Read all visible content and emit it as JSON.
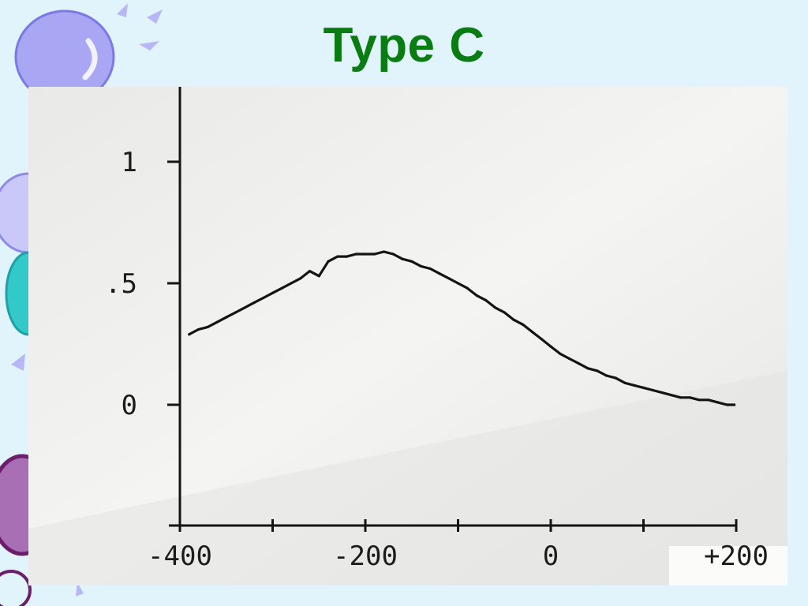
{
  "slide": {
    "title": "Type C"
  },
  "colors": {
    "background": "#e1f4fb",
    "title": "#0a7d12",
    "photo_paper": "#efefee",
    "ink": "#141414",
    "bubble_lavender": "#a9a7f4",
    "bubble_teal": "#33c9c9",
    "bubble_purple": "#a86fb4",
    "bubble_dark_purple": "#6b1f6b"
  },
  "decoration_icons": [
    "bubble-icon",
    "sparkle-icon"
  ],
  "chart_data": {
    "type": "line",
    "title": "",
    "xlabel": "",
    "ylabel": "",
    "xlim": [
      -400,
      200
    ],
    "ylim": [
      0,
      1
    ],
    "x_ticks": [
      {
        "value": -400,
        "label": "-400"
      },
      {
        "value": -300,
        "label": ""
      },
      {
        "value": -200,
        "label": "-200"
      },
      {
        "value": -100,
        "label": ""
      },
      {
        "value": 0,
        "label": "0"
      },
      {
        "value": 100,
        "label": ""
      },
      {
        "value": 200,
        "label": "+200"
      }
    ],
    "y_ticks": [
      {
        "value": 0,
        "label": "0"
      },
      {
        "value": 0.5,
        "label": ".5"
      },
      {
        "value": 1,
        "label": "1"
      }
    ],
    "grid": false,
    "legend": "none",
    "series": [
      {
        "x": [
          -390,
          -380,
          -370,
          -360,
          -350,
          -340,
          -330,
          -320,
          -310,
          -300,
          -290,
          -280,
          -270,
          -260,
          -250,
          -240,
          -230,
          -220,
          -210,
          -200,
          -190,
          -180,
          -170,
          -160,
          -150,
          -140,
          -130,
          -120,
          -110,
          -100,
          -90,
          -80,
          -70,
          -60,
          -50,
          -40,
          -30,
          -20,
          -10,
          0,
          10,
          20,
          30,
          40,
          50,
          60,
          70,
          80,
          90,
          100,
          110,
          120,
          130,
          140,
          150,
          160,
          170,
          180,
          190,
          198
        ],
        "y": [
          0.29,
          0.31,
          0.32,
          0.34,
          0.36,
          0.38,
          0.4,
          0.42,
          0.44,
          0.46,
          0.48,
          0.5,
          0.52,
          0.55,
          0.53,
          0.59,
          0.61,
          0.61,
          0.62,
          0.62,
          0.62,
          0.63,
          0.62,
          0.6,
          0.59,
          0.57,
          0.56,
          0.54,
          0.52,
          0.5,
          0.48,
          0.45,
          0.43,
          0.4,
          0.38,
          0.35,
          0.33,
          0.3,
          0.27,
          0.24,
          0.21,
          0.19,
          0.17,
          0.15,
          0.14,
          0.12,
          0.11,
          0.09,
          0.08,
          0.07,
          0.06,
          0.05,
          0.04,
          0.03,
          0.03,
          0.02,
          0.02,
          0.01,
          0.0,
          0.0
        ]
      }
    ]
  }
}
